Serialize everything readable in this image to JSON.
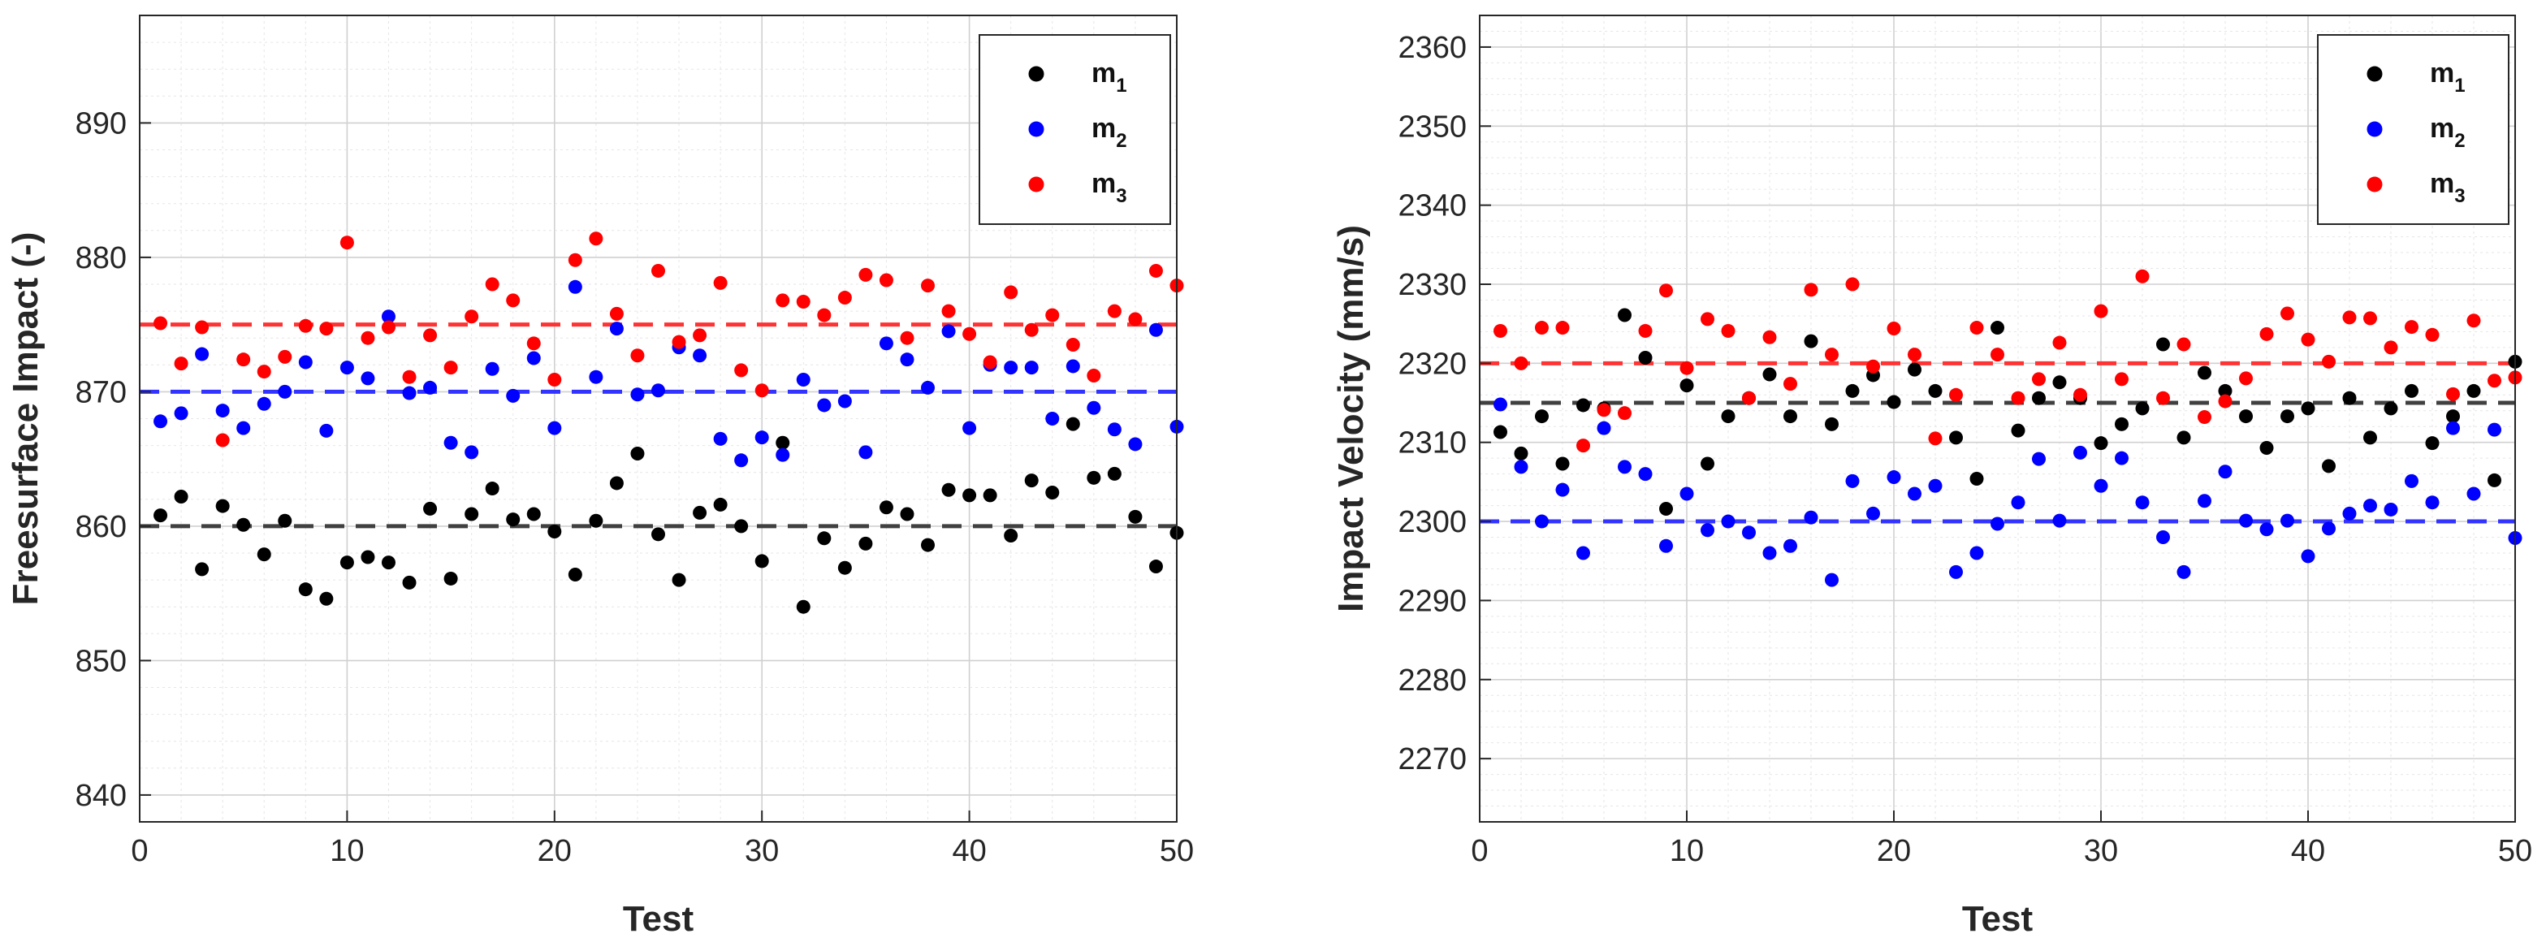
{
  "colors": {
    "m1": "#000000",
    "m2": "#0000ff",
    "m3": "#ff0000",
    "m1_line": "#404040",
    "m2_line": "#3333ff",
    "m3_line": "#ff3333"
  },
  "chart_data": [
    {
      "type": "scatter",
      "xlabel": "Test",
      "ylabel": "Freesurface Impact (-)",
      "xlim": [
        0,
        50
      ],
      "ylim": [
        838,
        898
      ],
      "xticks": [
        "0",
        "10",
        "20",
        "30",
        "40",
        "50"
      ],
      "yticks": [
        "840",
        "850",
        "860",
        "870",
        "880",
        "890"
      ],
      "grid": "on (major + minor)",
      "legend_position": "top-right",
      "series": [
        {
          "name": "m",
          "sub": "1",
          "mean": 860,
          "values": [
            860.8,
            862.2,
            856.8,
            861.5,
            860.1,
            857.9,
            860.4,
            855.3,
            854.6,
            857.3,
            857.7,
            857.3,
            855.8,
            861.3,
            856.1,
            860.9,
            862.8,
            860.5,
            860.9,
            859.6,
            856.4,
            860.4,
            863.2,
            865.4,
            859.4,
            856.0,
            861.0,
            861.6,
            860.0,
            857.4,
            866.2,
            854.0,
            859.1,
            856.9,
            858.7,
            861.4,
            860.9,
            858.6,
            862.7,
            862.3,
            862.3,
            859.3,
            863.4,
            862.5,
            867.6,
            863.6,
            863.9,
            860.7,
            857.0,
            859.5
          ]
        },
        {
          "name": "m",
          "sub": "2",
          "mean": 870,
          "values": [
            867.8,
            868.4,
            872.8,
            868.6,
            867.3,
            869.1,
            870.0,
            872.2,
            867.1,
            871.8,
            871.0,
            875.6,
            869.9,
            870.3,
            866.2,
            865.5,
            871.7,
            869.7,
            872.5,
            867.3,
            877.8,
            871.1,
            874.7,
            869.8,
            870.1,
            873.3,
            872.7,
            866.5,
            864.9,
            866.6,
            865.3,
            870.9,
            869.0,
            869.3,
            865.5,
            873.6,
            872.4,
            870.3,
            874.5,
            867.3,
            872.0,
            871.8,
            871.8,
            868.0,
            871.9,
            868.8,
            867.2,
            866.1,
            874.6,
            867.4
          ]
        },
        {
          "name": "m",
          "sub": "3",
          "mean": 875,
          "values": [
            875.1,
            872.1,
            874.8,
            866.4,
            872.4,
            871.5,
            872.6,
            874.9,
            874.7,
            881.1,
            874.0,
            874.8,
            871.1,
            874.2,
            871.8,
            875.6,
            878.0,
            876.8,
            873.6,
            870.9,
            879.8,
            881.4,
            875.8,
            872.7,
            879.0,
            873.7,
            874.2,
            878.1,
            871.6,
            870.1,
            876.8,
            876.7,
            875.7,
            877.0,
            878.7,
            878.3,
            874.0,
            877.9,
            876.0,
            874.3,
            872.2,
            877.4,
            874.6,
            875.7,
            873.5,
            871.2,
            876.0,
            875.4,
            879.0,
            877.9
          ]
        }
      ]
    },
    {
      "type": "scatter",
      "xlabel": "Test",
      "ylabel": "Impact Velocity (mm/s)",
      "xlim": [
        0,
        50
      ],
      "ylim": [
        2262,
        2364
      ],
      "xticks": [
        "0",
        "10",
        "20",
        "30",
        "40",
        "50"
      ],
      "yticks": [
        "2270",
        "2280",
        "2290",
        "2300",
        "2310",
        "2320",
        "2330",
        "2340",
        "2350",
        "2360"
      ],
      "grid": "on (major + minor)",
      "legend_position": "top-right",
      "series": [
        {
          "name": "m",
          "sub": "1",
          "mean": 2315,
          "values": [
            2311.3,
            2308.6,
            2313.3,
            2307.3,
            2314.7,
            2314.3,
            2326.1,
            2320.7,
            2301.6,
            2317.2,
            2307.3,
            2313.3,
            2315.6,
            2318.6,
            2313.3,
            2322.8,
            2312.3,
            2316.5,
            2318.5,
            2315.1,
            2319.2,
            2316.5,
            2310.6,
            2305.4,
            2324.5,
            2311.5,
            2315.6,
            2317.6,
            2315.6,
            2309.9,
            2312.3,
            2314.3,
            2322.4,
            2310.6,
            2318.8,
            2316.5,
            2313.3,
            2309.3,
            2313.3,
            2314.3,
            2307.0,
            2315.6,
            2310.6,
            2314.3,
            2316.5,
            2309.9,
            2313.3,
            2316.5,
            2305.2,
            2320.2
          ]
        },
        {
          "name": "m",
          "sub": "2",
          "mean": 2300,
          "values": [
            2314.8,
            2306.9,
            2300.0,
            2304.0,
            2296.0,
            2311.8,
            2306.9,
            2306.0,
            2296.9,
            2303.5,
            2298.9,
            2300.0,
            2298.6,
            2296.0,
            2296.9,
            2300.5,
            2292.6,
            2305.1,
            2301.0,
            2305.6,
            2303.5,
            2304.5,
            2293.6,
            2296.0,
            2299.7,
            2302.4,
            2307.9,
            2300.1,
            2308.7,
            2304.5,
            2308.0,
            2302.4,
            2298.0,
            2293.6,
            2302.6,
            2306.3,
            2300.1,
            2299.0,
            2300.1,
            2295.6,
            2299.1,
            2301.0,
            2302.0,
            2301.5,
            2305.1,
            2302.4,
            2311.8,
            2303.5,
            2311.6,
            2297.9
          ]
        },
        {
          "name": "m",
          "sub": "3",
          "mean": 2320,
          "values": [
            2324.1,
            2320.0,
            2324.5,
            2324.5,
            2309.6,
            2314.1,
            2313.7,
            2324.1,
            2329.2,
            2319.4,
            2325.6,
            2324.1,
            2315.6,
            2323.3,
            2317.4,
            2329.3,
            2321.1,
            2330.0,
            2319.6,
            2324.4,
            2321.1,
            2310.5,
            2316.0,
            2324.5,
            2321.1,
            2315.6,
            2318.0,
            2322.6,
            2316.0,
            2326.6,
            2318.0,
            2331.0,
            2315.6,
            2322.4,
            2313.2,
            2315.2,
            2318.1,
            2323.7,
            2326.3,
            2323.0,
            2320.2,
            2325.8,
            2325.7,
            2322.0,
            2324.6,
            2323.6,
            2316.1,
            2325.4,
            2317.8,
            2318.2
          ]
        }
      ]
    }
  ]
}
